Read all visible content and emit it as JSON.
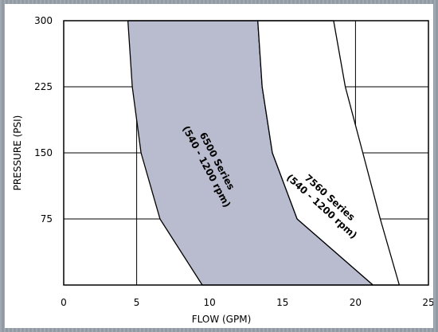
{
  "chart_data": {
    "type": "area",
    "xlabel": "FLOW (GPM)",
    "ylabel": "PRESSURE (PSI)",
    "xlim": [
      0,
      25
    ],
    "ylim": [
      0,
      300
    ],
    "x_ticks": [
      0,
      5,
      10,
      15,
      20,
      25
    ],
    "y_ticks": [
      75,
      150,
      225,
      300
    ],
    "x_tick_labels": [
      "0",
      "5",
      "10",
      "15",
      "20",
      "25"
    ],
    "y_tick_labels": [
      "75",
      "150",
      "225",
      "300"
    ],
    "grid": true,
    "series": [
      {
        "name": "6500 Series (540 - 1200 rpm)",
        "label_lines": [
          "6500 Series",
          "(540 - 1200 rpm)"
        ],
        "fill": "#b9bccf",
        "left_boundary": [
          [
            4.4,
            300
          ],
          [
            4.7,
            225
          ],
          [
            5.3,
            150
          ],
          [
            6.6,
            75
          ],
          [
            9.5,
            0
          ]
        ],
        "right_boundary": [
          [
            13.3,
            300
          ],
          [
            13.6,
            225
          ],
          [
            14.3,
            150
          ],
          [
            16.0,
            75
          ],
          [
            21.2,
            0
          ]
        ]
      },
      {
        "name": "7560 Series (540 - 1200 rpm)",
        "label_lines": [
          "7560 Series",
          "(540 - 1200 rpm)"
        ],
        "fill": "#ffffff",
        "left_boundary": [
          [
            13.3,
            300
          ],
          [
            13.6,
            225
          ],
          [
            14.3,
            150
          ],
          [
            16.0,
            75
          ],
          [
            21.2,
            0
          ]
        ],
        "right_boundary": [
          [
            18.5,
            300
          ],
          [
            19.3,
            225
          ],
          [
            20.5,
            150
          ],
          [
            21.7,
            75
          ],
          [
            23.0,
            0
          ]
        ]
      }
    ]
  }
}
